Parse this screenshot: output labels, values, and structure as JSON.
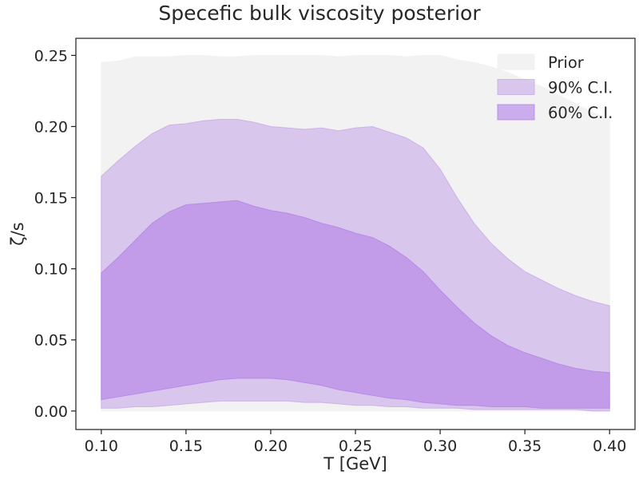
{
  "chart_data": {
    "type": "area",
    "title": "Specefic bulk viscosity posterior",
    "xlabel": "T [GeV]",
    "ylabel": "ζ/s",
    "xlim": [
      0.085,
      0.415
    ],
    "ylim": [
      -0.013,
      0.262
    ],
    "xticks": [
      0.1,
      0.15,
      0.2,
      0.25,
      0.3,
      0.35,
      0.4
    ],
    "xtick_labels": [
      "0.10",
      "0.15",
      "0.20",
      "0.25",
      "0.30",
      "0.35",
      "0.40"
    ],
    "yticks": [
      0.0,
      0.05,
      0.1,
      0.15,
      0.2,
      0.25
    ],
    "ytick_labels": [
      "0.00",
      "0.05",
      "0.10",
      "0.15",
      "0.20",
      "0.25"
    ],
    "legend_position": "top-right",
    "x": [
      0.1,
      0.11,
      0.12,
      0.13,
      0.14,
      0.15,
      0.16,
      0.17,
      0.18,
      0.19,
      0.2,
      0.21,
      0.22,
      0.23,
      0.24,
      0.25,
      0.26,
      0.27,
      0.28,
      0.29,
      0.3,
      0.31,
      0.32,
      0.33,
      0.34,
      0.35,
      0.36,
      0.37,
      0.38,
      0.39,
      0.4
    ],
    "series": [
      {
        "name": "Prior",
        "color": "#f2f2f2",
        "opacity": 1.0,
        "lower": [
          0.0,
          0.0,
          0.0,
          0.0,
          0.0,
          0.0,
          0.0,
          0.0,
          0.0,
          0.0,
          0.0,
          0.0,
          0.0,
          0.0,
          0.0,
          0.0,
          0.0,
          0.0,
          0.0,
          0.0,
          0.0,
          0.0,
          0.0,
          0.0,
          0.0,
          0.0,
          0.0,
          0.0,
          0.0,
          0.0,
          0.0
        ],
        "upper": [
          0.245,
          0.246,
          0.249,
          0.249,
          0.249,
          0.25,
          0.25,
          0.249,
          0.249,
          0.25,
          0.25,
          0.25,
          0.25,
          0.25,
          0.249,
          0.25,
          0.25,
          0.25,
          0.249,
          0.25,
          0.25,
          0.247,
          0.245,
          0.242,
          0.238,
          0.233,
          0.228,
          0.222,
          0.216,
          0.21,
          0.205
        ]
      },
      {
        "name": "90% C.I.",
        "color": "#c8a8e8",
        "opacity": 0.6,
        "lower": [
          0.002,
          0.002,
          0.003,
          0.003,
          0.004,
          0.005,
          0.006,
          0.007,
          0.007,
          0.007,
          0.007,
          0.007,
          0.006,
          0.006,
          0.005,
          0.004,
          0.004,
          0.003,
          0.003,
          0.002,
          0.002,
          0.002,
          0.001,
          0.001,
          0.001,
          0.001,
          0.001,
          0.001,
          0.001,
          0.0,
          0.0
        ],
        "upper": [
          0.165,
          0.176,
          0.186,
          0.195,
          0.201,
          0.202,
          0.204,
          0.205,
          0.205,
          0.203,
          0.2,
          0.199,
          0.198,
          0.199,
          0.197,
          0.199,
          0.2,
          0.196,
          0.192,
          0.185,
          0.17,
          0.15,
          0.132,
          0.118,
          0.107,
          0.098,
          0.092,
          0.086,
          0.081,
          0.077,
          0.074
        ]
      },
      {
        "name": "60% C.I.",
        "color": "#b585e8",
        "opacity": 0.65,
        "lower": [
          0.008,
          0.01,
          0.012,
          0.014,
          0.016,
          0.018,
          0.02,
          0.022,
          0.023,
          0.023,
          0.023,
          0.022,
          0.02,
          0.018,
          0.015,
          0.013,
          0.011,
          0.009,
          0.008,
          0.006,
          0.005,
          0.004,
          0.004,
          0.003,
          0.003,
          0.003,
          0.002,
          0.002,
          0.002,
          0.002,
          0.002
        ],
        "upper": [
          0.097,
          0.108,
          0.12,
          0.132,
          0.14,
          0.145,
          0.146,
          0.147,
          0.148,
          0.144,
          0.141,
          0.139,
          0.136,
          0.132,
          0.129,
          0.125,
          0.122,
          0.116,
          0.108,
          0.098,
          0.085,
          0.073,
          0.062,
          0.053,
          0.046,
          0.041,
          0.037,
          0.033,
          0.03,
          0.028,
          0.027
        ]
      }
    ]
  }
}
